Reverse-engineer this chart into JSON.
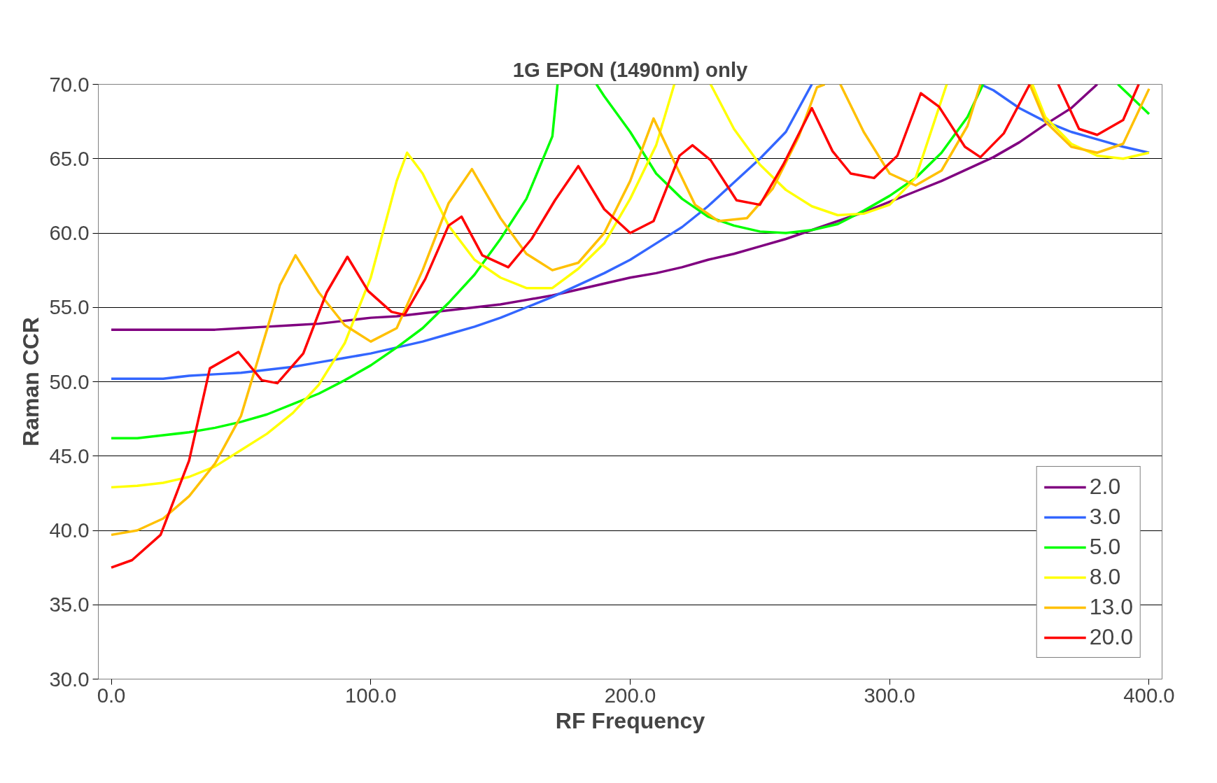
{
  "chart_data": {
    "type": "line",
    "title": "1G EPON (1490nm) only",
    "xlabel": "RF Frequency",
    "ylabel": "Raman CCR",
    "xlim": [
      -5,
      405
    ],
    "xticks": [
      {
        "value": 0,
        "label": "0.0"
      },
      {
        "value": 100,
        "label": "100.0"
      },
      {
        "value": 200,
        "label": "200.0"
      },
      {
        "value": 300,
        "label": "300.0"
      },
      {
        "value": 400,
        "label": "400.0"
      }
    ],
    "ylim": [
      30,
      70
    ],
    "yticks": [
      {
        "value": 30,
        "label": "30.0"
      },
      {
        "value": 35,
        "label": "35.0"
      },
      {
        "value": 40,
        "label": "40.0"
      },
      {
        "value": 45,
        "label": "45.0"
      },
      {
        "value": 50,
        "label": "50.0"
      },
      {
        "value": 55,
        "label": "55.0"
      },
      {
        "value": 60,
        "label": "60.0"
      },
      {
        "value": 65,
        "label": "65.0"
      },
      {
        "value": 70,
        "label": "70.0"
      }
    ],
    "grid": "y",
    "legend": "bottom right",
    "marker": "none",
    "line_style": "solid",
    "series": [
      {
        "name": "2.0",
        "color": "#800080",
        "x": [
          0,
          10,
          20,
          30,
          40,
          50,
          60,
          70,
          80,
          90,
          100,
          110,
          120,
          130,
          140,
          150,
          160,
          170,
          180,
          190,
          200,
          210,
          220,
          230,
          240,
          250,
          260,
          270,
          280,
          290,
          300,
          310,
          320,
          330,
          340,
          350,
          360,
          370,
          380
        ],
        "values": [
          53.5,
          53.5,
          53.5,
          53.5,
          53.5,
          53.6,
          53.7,
          53.8,
          53.9,
          54.1,
          54.3,
          54.4,
          54.6,
          54.8,
          55.0,
          55.2,
          55.5,
          55.8,
          56.2,
          56.6,
          57.0,
          57.3,
          57.7,
          58.2,
          58.6,
          59.1,
          59.6,
          60.2,
          60.8,
          61.4,
          62.1,
          62.8,
          63.5,
          64.3,
          65.1,
          66.1,
          67.3,
          68.4,
          70.0
        ]
      },
      {
        "name": "3.0",
        "color": "#3366ff",
        "x": [
          0,
          10,
          20,
          30,
          40,
          50,
          60,
          70,
          80,
          90,
          100,
          110,
          120,
          130,
          140,
          150,
          160,
          170,
          180,
          190,
          200,
          210,
          220,
          230,
          240,
          250,
          260,
          270,
          300,
          335,
          340,
          350,
          360,
          370,
          380,
          390,
          400
        ],
        "values": [
          50.2,
          50.2,
          50.2,
          50.4,
          50.5,
          50.6,
          50.8,
          51.0,
          51.3,
          51.6,
          51.9,
          52.3,
          52.7,
          53.2,
          53.7,
          54.3,
          55.0,
          55.7,
          56.5,
          57.3,
          58.2,
          59.3,
          60.4,
          61.8,
          63.4,
          65.0,
          66.8,
          70.0,
          null,
          70.0,
          69.6,
          68.4,
          67.5,
          66.8,
          66.3,
          65.8,
          65.4
        ]
      },
      {
        "name": "5.0",
        "color": "#00ff00",
        "x": [
          0,
          10,
          20,
          30,
          40,
          50,
          60,
          70,
          80,
          90,
          100,
          110,
          120,
          130,
          140,
          150,
          160,
          170,
          172,
          180,
          187,
          190,
          200,
          210,
          220,
          230,
          240,
          250,
          260,
          270,
          280,
          290,
          300,
          310,
          320,
          330,
          336,
          350,
          388,
          400
        ],
        "values": [
          46.2,
          46.2,
          46.4,
          46.6,
          46.9,
          47.3,
          47.8,
          48.5,
          49.2,
          50.1,
          51.1,
          52.3,
          53.6,
          55.3,
          57.2,
          59.6,
          62.3,
          66.5,
          70.0,
          null,
          70.0,
          69.2,
          66.8,
          64.0,
          62.3,
          61.1,
          60.5,
          60.1,
          60.0,
          60.2,
          60.6,
          61.5,
          62.5,
          63.7,
          65.4,
          67.8,
          70.0,
          null,
          70.0,
          68.0
        ]
      },
      {
        "name": "8.0",
        "color": "#ffff00",
        "x": [
          0,
          10,
          20,
          30,
          40,
          50,
          60,
          70,
          80,
          90,
          100,
          110,
          114,
          120,
          130,
          140,
          150,
          160,
          170,
          180,
          190,
          200,
          210,
          217,
          224,
          231,
          240,
          250,
          260,
          270,
          280,
          290,
          300,
          310,
          322,
          340,
          355,
          360,
          370,
          380,
          390,
          400
        ],
        "values": [
          42.9,
          43.0,
          43.2,
          43.6,
          44.3,
          45.4,
          46.5,
          47.9,
          49.8,
          52.6,
          57.0,
          63.5,
          65.4,
          64.0,
          60.5,
          58.2,
          57.0,
          56.3,
          56.3,
          57.6,
          59.3,
          62.3,
          65.9,
          70.0,
          null,
          70.0,
          67.0,
          64.6,
          62.9,
          61.8,
          61.2,
          61.3,
          61.9,
          63.7,
          70.0,
          null,
          70.0,
          67.8,
          66.0,
          65.2,
          65.0,
          65.4
        ]
      },
      {
        "name": "13.0",
        "color": "#ffc000",
        "x": [
          0,
          10,
          20,
          30,
          40,
          50,
          60,
          65,
          71,
          80,
          90,
          100,
          110,
          120,
          130,
          139,
          150,
          160,
          170,
          180,
          190,
          200,
          209,
          215,
          225,
          234,
          245,
          255,
          265,
          272,
          275,
          278,
          281,
          290,
          300,
          310,
          320,
          330,
          335,
          345,
          354,
          360,
          370,
          380,
          390,
          400
        ],
        "values": [
          39.7,
          40.0,
          40.8,
          42.3,
          44.5,
          47.7,
          53.5,
          56.5,
          58.5,
          56.0,
          53.8,
          52.7,
          53.6,
          57.5,
          62.0,
          64.3,
          61.0,
          58.6,
          57.5,
          58.0,
          60.0,
          63.5,
          67.7,
          65.5,
          61.9,
          60.8,
          61.0,
          63.0,
          66.5,
          69.8,
          70.0,
          null,
          70.0,
          66.8,
          64.0,
          63.2,
          64.2,
          67.2,
          70.0,
          null,
          70.0,
          67.5,
          65.8,
          65.4,
          66.0,
          69.7
        ]
      },
      {
        "name": "20.0",
        "color": "#ff0000",
        "x": [
          0,
          8,
          19,
          30,
          38,
          49,
          58,
          64,
          74,
          83,
          91,
          99,
          108,
          113,
          121,
          130,
          135,
          143,
          153,
          162,
          171,
          180,
          190,
          200,
          209,
          219,
          224,
          231,
          241,
          250,
          259,
          270,
          278,
          285,
          294,
          303,
          312,
          319,
          329,
          335,
          344,
          354,
          360,
          365,
          373,
          380,
          390,
          396
        ],
        "values": [
          37.5,
          38.0,
          39.7,
          44.7,
          50.9,
          52.0,
          50.1,
          49.9,
          51.9,
          56.0,
          58.4,
          56.1,
          54.7,
          54.5,
          56.9,
          60.5,
          61.1,
          58.5,
          57.7,
          59.6,
          62.2,
          64.5,
          61.6,
          60.0,
          60.8,
          65.2,
          65.9,
          64.9,
          62.2,
          61.9,
          64.6,
          68.4,
          65.5,
          64.0,
          63.7,
          65.2,
          69.4,
          68.5,
          65.8,
          65.1,
          66.7,
          70.0,
          null,
          70.0,
          67.0,
          66.6,
          67.6,
          70.0
        ]
      }
    ]
  }
}
